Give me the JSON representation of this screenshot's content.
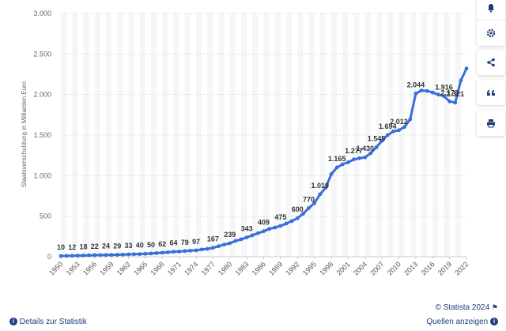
{
  "chart_data": {
    "type": "line",
    "ylabel": "Staatsverschuldung in Milliarden Euro",
    "ylim": [
      0,
      3000
    ],
    "yticks": [
      0,
      500,
      1000,
      1500,
      2000,
      2500,
      3000
    ],
    "ytick_labels": [
      "0",
      "500",
      "1.000",
      "1.500",
      "2.000",
      "2.500",
      "3.000"
    ],
    "xlim": [
      1950,
      2022
    ],
    "xtick_labels": [
      "1950",
      "1953",
      "1956",
      "1959",
      "1962",
      "1965",
      "1968",
      "1971",
      "1974",
      "1977",
      "1980",
      "1983",
      "1986",
      "1989",
      "1992",
      "1995",
      "1998",
      "2001",
      "2004",
      "2007",
      "2010",
      "2013",
      "2016",
      "2019",
      "2022"
    ],
    "grid": true,
    "color": "#3a6fd8",
    "x": [
      1950,
      1951,
      1952,
      1953,
      1954,
      1955,
      1956,
      1957,
      1958,
      1959,
      1960,
      1961,
      1962,
      1963,
      1964,
      1965,
      1966,
      1967,
      1968,
      1969,
      1970,
      1971,
      1972,
      1973,
      1974,
      1975,
      1976,
      1977,
      1978,
      1979,
      1980,
      1981,
      1982,
      1983,
      1984,
      1985,
      1986,
      1987,
      1988,
      1989,
      1990,
      1991,
      1992,
      1993,
      1994,
      1995,
      1996,
      1997,
      1998,
      1999,
      2000,
      2001,
      2002,
      2003,
      2004,
      2005,
      2006,
      2007,
      2008,
      2009,
      2010,
      2011,
      2012,
      2013,
      2014,
      2015,
      2016,
      2017,
      2018,
      2019,
      2020,
      2021,
      2022
    ],
    "values": [
      10,
      11,
      12,
      14,
      16,
      18,
      20,
      21,
      22,
      23,
      24,
      26,
      29,
      31,
      33,
      36,
      40,
      45,
      50,
      55,
      62,
      64,
      70,
      75,
      79,
      90,
      97,
      110,
      130,
      150,
      167,
      195,
      215,
      239,
      265,
      290,
      315,
      343,
      360,
      380,
      409,
      440,
      475,
      530,
      600,
      660,
      770,
      850,
      1019,
      1100,
      1140,
      1165,
      1200,
      1215,
      1225,
      1277,
      1350,
      1430,
      1500,
      1545,
      1560,
      1600,
      1694,
      2012,
      2050,
      2044,
      2025,
      2000,
      1980,
      1916,
      1900,
      2173,
      2321
    ],
    "data_labels": [
      {
        "x": 1950,
        "label": "10"
      },
      {
        "x": 1952,
        "label": "12"
      },
      {
        "x": 1954,
        "label": "18"
      },
      {
        "x": 1956,
        "label": "22"
      },
      {
        "x": 1958,
        "label": "24"
      },
      {
        "x": 1960,
        "label": "29"
      },
      {
        "x": 1962,
        "label": "33"
      },
      {
        "x": 1964,
        "label": "40"
      },
      {
        "x": 1966,
        "label": "50"
      },
      {
        "x": 1968,
        "label": "62"
      },
      {
        "x": 1970,
        "label": "64"
      },
      {
        "x": 1972,
        "label": "79"
      },
      {
        "x": 1974,
        "label": "97"
      },
      {
        "x": 1977,
        "label": "167"
      },
      {
        "x": 1980,
        "label": "239"
      },
      {
        "x": 1983,
        "label": "343"
      },
      {
        "x": 1986,
        "label": "409"
      },
      {
        "x": 1989,
        "label": "475"
      },
      {
        "x": 1992,
        "label": "600"
      },
      {
        "x": 1994,
        "label": "770"
      },
      {
        "x": 1996,
        "label": "1.019"
      },
      {
        "x": 1999,
        "label": "1.165"
      },
      {
        "x": 2002,
        "label": "1.277"
      },
      {
        "x": 2004,
        "label": "1.430"
      },
      {
        "x": 2006,
        "label": "1.545"
      },
      {
        "x": 2008,
        "label": "1.694"
      },
      {
        "x": 2010,
        "label": "2.012"
      },
      {
        "x": 2013,
        "label": "2.044"
      },
      {
        "x": 2018,
        "label": "1.916"
      },
      {
        "x": 2019,
        "label": "2.173"
      },
      {
        "x": 2020,
        "label": "2.321"
      }
    ]
  },
  "sidebar": {
    "buttons": [
      {
        "name": "bell-icon"
      },
      {
        "name": "gear-icon"
      },
      {
        "name": "share-icon"
      },
      {
        "name": "quote-icon"
      },
      {
        "name": "print-icon"
      }
    ]
  },
  "footer": {
    "copyright": "© Statista 2024",
    "details_link": "Details zur Statistik",
    "sources_link": "Quellen anzeigen",
    "accent_color": "#1f3d7a"
  }
}
